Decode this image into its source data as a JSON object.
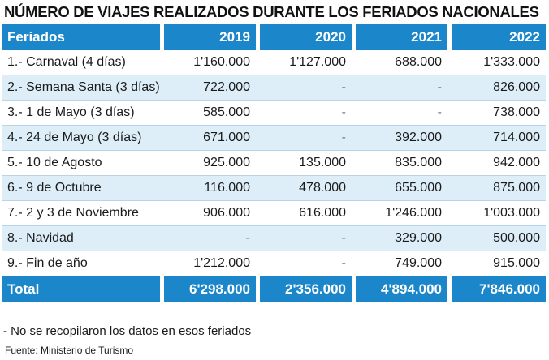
{
  "chart_data": {
    "type": "table",
    "title": "NÚMERO DE VIAJES REALIZADOS DURANTE LOS FERIADOS NACIONALES",
    "columns": [
      "Feriados",
      "2019",
      "2020",
      "2021",
      "2022"
    ],
    "rows": [
      [
        "1.- Carnaval (4 días)",
        "1'160.000",
        "1'127.000",
        "688.000",
        "1'333.000"
      ],
      [
        "2.- Semana Santa (3 días)",
        "722.000",
        "-",
        "-",
        "826.000"
      ],
      [
        "3.- 1 de Mayo (3 días)",
        "585.000",
        "-",
        "-",
        "738.000"
      ],
      [
        "4.- 24 de Mayo (3 días)",
        "671.000",
        "-",
        "392.000",
        "714.000"
      ],
      [
        "5.- 10 de Agosto",
        "925.000",
        "135.000",
        "835.000",
        "942.000"
      ],
      [
        "6.- 9 de Octubre",
        "116.000",
        "478.000",
        "655.000",
        "875.000"
      ],
      [
        "7.- 2 y 3 de Noviembre",
        "906.000",
        "616.000",
        "1'246.000",
        "1'003.000"
      ],
      [
        "8.- Navidad",
        "-",
        "-",
        "329.000",
        "500.000"
      ],
      [
        "9.- Fin de año",
        "1'212.000",
        "-",
        "749.000",
        "915.000"
      ]
    ],
    "total": [
      "Total",
      "6'298.000",
      "2'356.000",
      "4'894.000",
      "7'846.000"
    ],
    "note": "- No se recopilaron los datos en esos feriados",
    "source": "Fuente: Ministerio de Turismo"
  },
  "colors": {
    "header": "#1b86c9",
    "stripe": "#ddeef9"
  }
}
